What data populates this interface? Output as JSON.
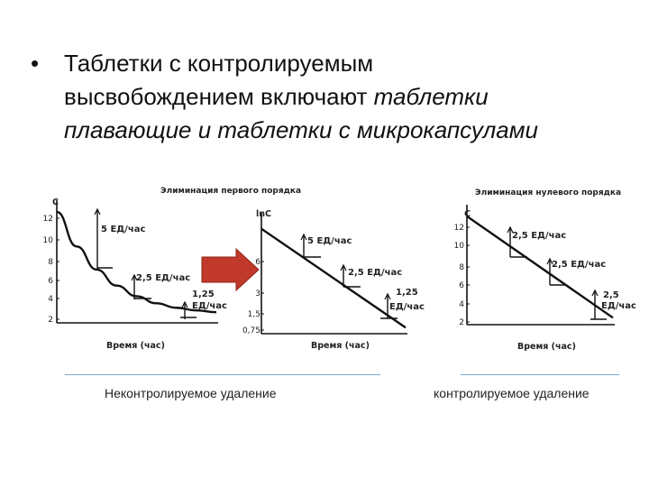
{
  "slide": {
    "bullet": "•",
    "text_line1": "Таблетки с контролируемым",
    "text_line2_normal": "высвобождением включают ",
    "text_line2_italic": "таблетки",
    "text_line3_italic": "плавающие и таблетки с микрокапсулами",
    "caption_left": "Неконтролируемое удаление",
    "caption_right": "контролируемое удаление"
  },
  "colors": {
    "arrow": "#c0392b",
    "separator": "#7fa7c9",
    "curve": "#111111"
  },
  "icons": {
    "arrow": "right-arrow-icon"
  },
  "chart_data": [
    {
      "type": "line",
      "title": "Элиминация первого порядка",
      "ylabel": "C",
      "xlabel": "Время (час)",
      "yticks": [
        "2",
        "4",
        "6",
        "8",
        "10",
        "12"
      ],
      "ylim": [
        0,
        13
      ],
      "series": [
        {
          "x": [
            0,
            1,
            2,
            3,
            4,
            5,
            6,
            7,
            8
          ],
          "values": [
            12.5,
            8.6,
            6.0,
            4.2,
            3.0,
            2.2,
            1.7,
            1.4,
            1.2
          ]
        }
      ],
      "annotations": [
        {
          "text": "5 ЕД/час",
          "x": 2.2,
          "y": 5.6
        },
        {
          "text": "2,5 ЕД/час",
          "x": 4.3,
          "y": 2.8
        },
        {
          "text": "1,25",
          "x": 6.8,
          "y": 1.45
        },
        {
          "text": "ЕД/час",
          "x": 6.8,
          "y": 1.45
        }
      ]
    },
    {
      "type": "line",
      "title": "",
      "ylabel": "lnC",
      "xlabel": "Время (час)",
      "yticks": [
        "0,75",
        "1,5",
        "3",
        "6"
      ],
      "series": [
        {
          "x": [
            0,
            8
          ],
          "values": [
            12,
            0.7
          ]
        }
      ],
      "annotations": [
        {
          "text": "5 ЕД/час",
          "x": 2.4,
          "y": 8.6
        },
        {
          "text": "2,5 ЕД/час",
          "x": 4.5,
          "y": 5.6
        },
        {
          "text": "1,25",
          "x": 6.7,
          "y": 2.7
        },
        {
          "text": "ЕД/час",
          "x": 6.7,
          "y": 2.7
        }
      ]
    },
    {
      "type": "line",
      "title": "Элиминация нулевого порядка",
      "ylabel": "C",
      "xlabel": "Время (час)",
      "yticks": [
        "2",
        "4",
        "6",
        "8",
        "10",
        "12"
      ],
      "ylim": [
        0,
        13
      ],
      "series": [
        {
          "x": [
            0,
            8
          ],
          "values": [
            12.5,
            0.8
          ]
        }
      ],
      "annotations": [
        {
          "text": "2,5 ЕД/час",
          "x": 2.6,
          "y": 8.7
        },
        {
          "text": "2,5 ЕД/час",
          "x": 4.8,
          "y": 5.6
        },
        {
          "text": "2,5",
          "x": 7.3,
          "y": 1.9
        },
        {
          "text": "ЕД/час",
          "x": 7.3,
          "y": 1.9
        }
      ]
    }
  ]
}
